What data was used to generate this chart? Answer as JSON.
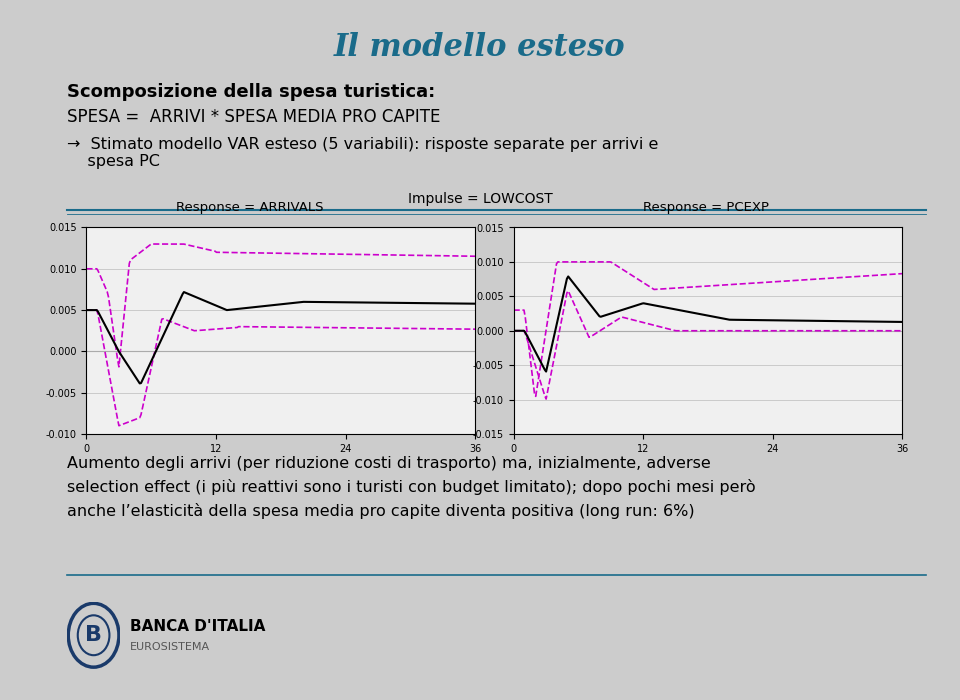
{
  "title": "Il modello esteso",
  "title_color": "#1a6b8a",
  "bold_line1": "Scomposizione della spesa turistica:",
  "line2": "SPESA =  ARRIVI * SPESA MEDIA PRO CAPITE",
  "arrow_line": "→  Stimato modello VAR esteso (5 variabili): risposte separate per arrivi e\n    spesa PC",
  "impulse_label": "Impulse = LOWCOST",
  "left_title": "Response = ARRIVALS",
  "right_title": "Response = PCEXP",
  "bottom_text": "Aumento degli arrivi (per riduzione costi di trasporto) ma, inizialmente, adverse\nselection effect (i più reattivi sono i turisti con budget limitato); dopo pochi mesi però\nanche l’elasticità della spesa media pro capite diventa positiva (long run: 6%)",
  "xlim": [
    0,
    36
  ],
  "xticks": [
    0,
    12,
    24,
    36
  ],
  "left_ylim": [
    -0.01,
    0.015
  ],
  "left_yticks": [
    -0.01,
    -0.005,
    0.0,
    0.005,
    0.01,
    0.015
  ],
  "right_ylim": [
    -0.015,
    0.015
  ],
  "right_yticks": [
    -0.015,
    -0.01,
    -0.005,
    0.0,
    0.005,
    0.01,
    0.015
  ],
  "line_color_solid": "#000000",
  "line_color_dashed": "#cc00cc",
  "separator_color": "#1a6b8a",
  "bg_color": "#cccccc"
}
